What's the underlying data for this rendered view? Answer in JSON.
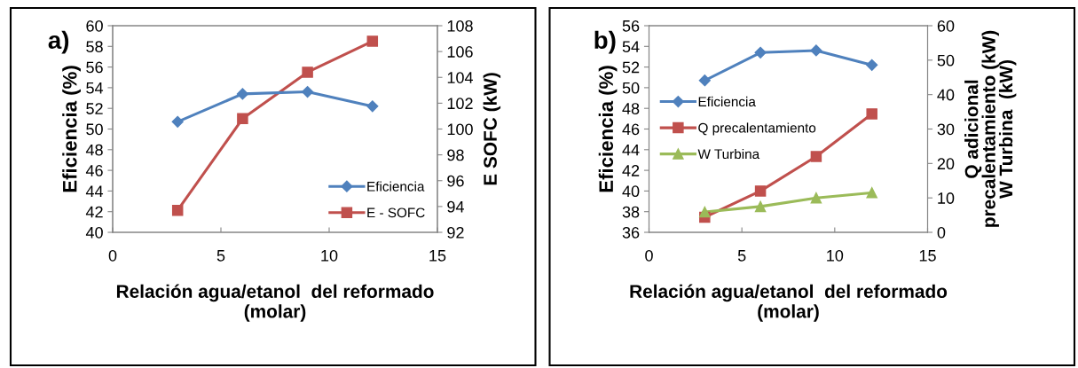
{
  "chart_data": [
    {
      "type": "line",
      "title": "a)",
      "xlabel": "Relación agua/etanol  del reformado\n(molar)",
      "ylabel": "Eficiencia (%)",
      "y2label": "E SOFC (kW)",
      "x": [
        3,
        6,
        9,
        12
      ],
      "xlim": [
        0,
        15
      ],
      "xticks": [
        0,
        5,
        10,
        15
      ],
      "ylim": [
        40,
        60
      ],
      "yticks": [
        40,
        42,
        44,
        46,
        48,
        50,
        52,
        54,
        56,
        58,
        60
      ],
      "y2lim": [
        92,
        108
      ],
      "y2ticks": [
        92,
        94,
        96,
        98,
        100,
        102,
        104,
        106,
        108
      ],
      "grid": false,
      "legend": "bottom right",
      "series": [
        {
          "name": "Eficiencia",
          "color": "#4f81bd",
          "marker": "diamond",
          "values": [
            50.7,
            53.4,
            53.6,
            52.2
          ]
        },
        {
          "name": "E - SOFC",
          "color": "#c0504d",
          "marker": "square",
          "axis": "y2",
          "values": [
            93.7,
            100.8,
            104.4,
            106.8
          ]
        }
      ]
    },
    {
      "type": "line",
      "title": "b)",
      "xlabel": "Relación agua/etanol  del reformado\n(molar)",
      "ylabel": "Eficiencia (%)",
      "y2label": "Q adicional\nprecalentamiento (kW)\nW Turbina  (kW)",
      "x": [
        3,
        6,
        9,
        12
      ],
      "xlim": [
        0,
        15
      ],
      "xticks": [
        0,
        5,
        10,
        15
      ],
      "ylim": [
        36,
        56
      ],
      "yticks": [
        36,
        38,
        40,
        42,
        44,
        46,
        48,
        50,
        52,
        54,
        56
      ],
      "y2lim": [
        0,
        60
      ],
      "y2ticks": [
        0,
        10,
        20,
        30,
        40,
        50,
        60
      ],
      "grid": false,
      "legend": "left",
      "series": [
        {
          "name": "Eficiencia",
          "color": "#4f81bd",
          "marker": "diamond",
          "values": [
            50.7,
            53.4,
            53.6,
            52.2
          ]
        },
        {
          "name": "Q precalentamiento",
          "color": "#c0504d",
          "marker": "square",
          "axis": "y2",
          "values": [
            4.4,
            12.0,
            22.0,
            34.4
          ]
        },
        {
          "name": "W Turbina",
          "color": "#9bbb59",
          "marker": "triangle",
          "axis": "y2",
          "values": [
            5.9,
            7.5,
            10.0,
            11.5
          ]
        }
      ]
    }
  ]
}
